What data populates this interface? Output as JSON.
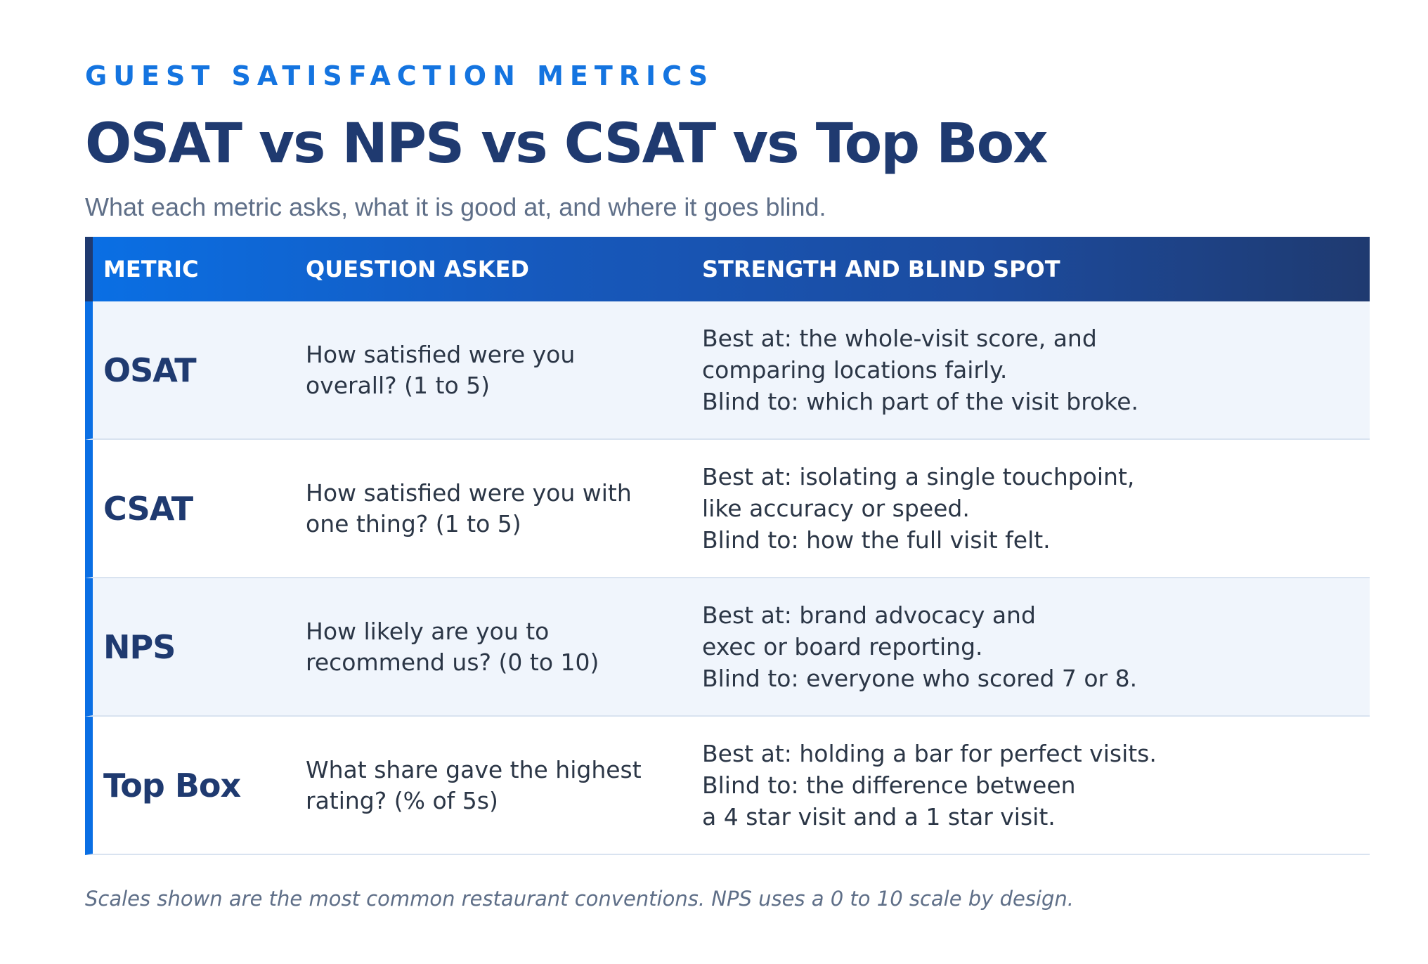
{
  "header": {
    "eyebrow": "GUEST SATISFACTION METRICS",
    "title": "OSAT vs NPS vs CSAT vs Top Box",
    "subtitle": "What each metric asks, what it is good at, and where it goes blind."
  },
  "table": {
    "columns": [
      "METRIC",
      "QUESTION ASKED",
      "STRENGTH AND BLIND SPOT"
    ],
    "rows": [
      {
        "metric": "OSAT",
        "question": "How satisfied were you overall? (1 to 5)",
        "strength_lines": [
          "Best at: the whole-visit score, and",
          "comparing locations fairly.",
          "Blind to: which part of the visit broke."
        ]
      },
      {
        "metric": "CSAT",
        "question": "How satisfied were you with one thing? (1 to 5)",
        "strength_lines": [
          "Best at: isolating a single touchpoint,",
          "like accuracy or speed.",
          "Blind to: how the full visit felt."
        ]
      },
      {
        "metric": "NPS",
        "question": "How likely are you to recommend us? (0 to 10)",
        "strength_lines": [
          "Best at: brand advocacy and",
          "exec or board reporting.",
          "Blind to: everyone who scored 7 or 8."
        ]
      },
      {
        "metric": "Top Box",
        "question": "What share gave the highest rating? (% of 5s)",
        "strength_lines": [
          "Best at: holding a bar for perfect visits.",
          "Blind to: the difference between",
          "a 4 star visit and a 1 star visit."
        ]
      }
    ]
  },
  "footnote": "Scales shown are the most common restaurant conventions. NPS uses a 0 to 10 scale by design.",
  "colors": {
    "accent_blue": "#0a6fe4",
    "navy": "#1f3a70",
    "row_shade": "#f0f5fc",
    "muted_text": "#5f6f88"
  }
}
